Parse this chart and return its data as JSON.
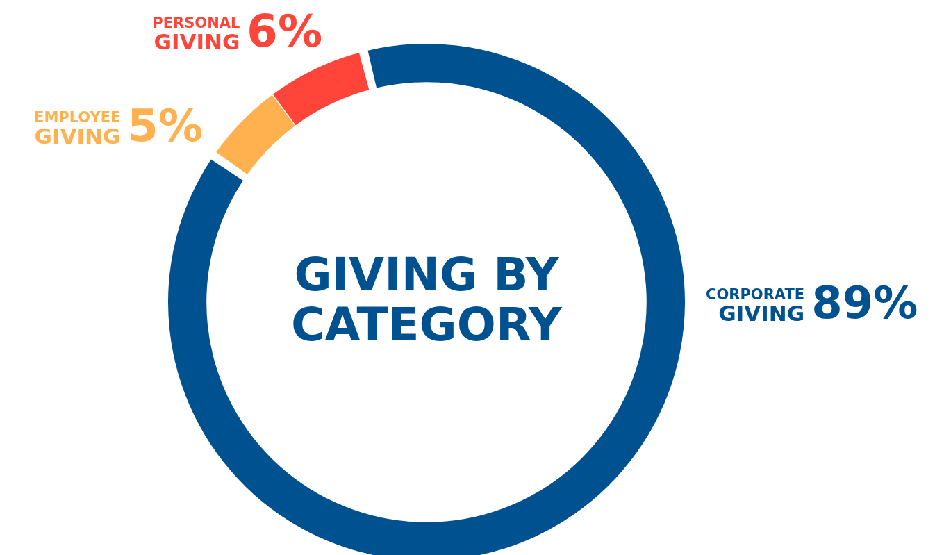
{
  "chart_data": {
    "type": "donut",
    "title": "GIVING BY CATEGORY",
    "categories": [
      "CORPORATE GIVING",
      "EMPLOYEE GIVING",
      "PERSONAL GIVING"
    ],
    "values": [
      89,
      5,
      6
    ],
    "colors": [
      "#00518f",
      "#ffb14f",
      "#ff4439"
    ],
    "value_labels": [
      "89%",
      "5%",
      "6%"
    ],
    "legend": false
  }
}
